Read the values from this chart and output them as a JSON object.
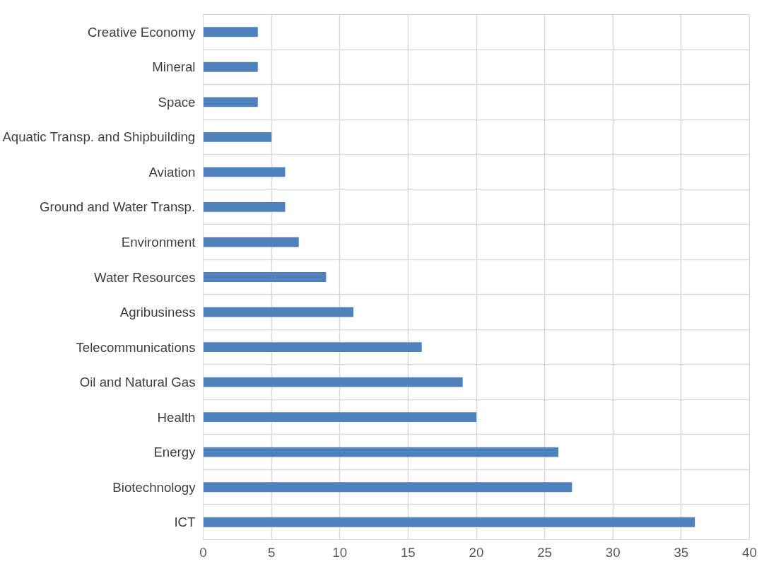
{
  "chart_data": {
    "type": "bar",
    "orientation": "horizontal",
    "categories": [
      "Creative Economy",
      "Mineral",
      "Space",
      "Aquatic Transp. and Shipbuilding",
      "Aviation",
      "Ground and Water Transp.",
      "Environment",
      "Water Resources",
      "Agribusiness",
      "Telecommunications",
      "Oil and Natural Gas",
      "Health",
      "Energy",
      "Biotechnology",
      "ICT"
    ],
    "values": [
      4,
      4,
      4,
      5,
      6,
      6,
      7,
      9,
      11,
      16,
      19,
      20,
      26,
      27,
      36
    ],
    "color": "#4f81bd",
    "xlim": [
      0,
      40
    ],
    "xticks": [
      0,
      5,
      10,
      15,
      20,
      25,
      30,
      35,
      40
    ],
    "grid": true
  }
}
